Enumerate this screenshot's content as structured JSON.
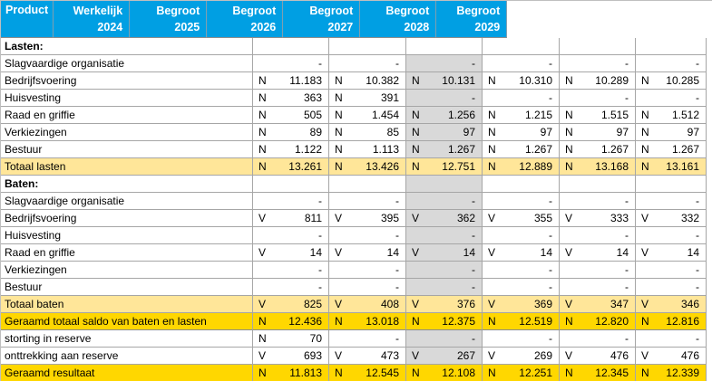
{
  "table": {
    "product_header": "Product",
    "columns": [
      {
        "type_label": "Werkelijk",
        "year": "2024",
        "shaded": false
      },
      {
        "type_label": "Begroot",
        "year": "2025",
        "shaded": false
      },
      {
        "type_label": "Begroot",
        "year": "2026",
        "shaded": true
      },
      {
        "type_label": "Begroot",
        "year": "2027",
        "shaded": false
      },
      {
        "type_label": "Begroot",
        "year": "2028",
        "shaded": false
      },
      {
        "type_label": "Begroot",
        "year": "2029",
        "shaded": false
      }
    ],
    "rows": [
      {
        "label": "Lasten:",
        "style": "section",
        "cells": [
          [
            "",
            ""
          ],
          [
            "",
            ""
          ],
          [
            "",
            ""
          ],
          [
            "",
            ""
          ],
          [
            "",
            ""
          ],
          [
            "",
            ""
          ]
        ]
      },
      {
        "label": "Slagvaardige organisatie",
        "style": "normal",
        "cells": [
          [
            "",
            "-"
          ],
          [
            "",
            "-"
          ],
          [
            "",
            "-"
          ],
          [
            "",
            "-"
          ],
          [
            "",
            "-"
          ],
          [
            "",
            "-"
          ]
        ]
      },
      {
        "label": "Bedrijfsvoering",
        "style": "normal",
        "cells": [
          [
            "N",
            "11.183"
          ],
          [
            "N",
            "10.382"
          ],
          [
            "N",
            "10.131"
          ],
          [
            "N",
            "10.310"
          ],
          [
            "N",
            "10.289"
          ],
          [
            "N",
            "10.285"
          ]
        ]
      },
      {
        "label": "Huisvesting",
        "style": "normal",
        "cells": [
          [
            "N",
            "363"
          ],
          [
            "N",
            "391"
          ],
          [
            "",
            "-"
          ],
          [
            "",
            "-"
          ],
          [
            "",
            "-"
          ],
          [
            "",
            "-"
          ]
        ]
      },
      {
        "label": "Raad en griffie",
        "style": "normal",
        "cells": [
          [
            "N",
            "505"
          ],
          [
            "N",
            "1.454"
          ],
          [
            "N",
            "1.256"
          ],
          [
            "N",
            "1.215"
          ],
          [
            "N",
            "1.515"
          ],
          [
            "N",
            "1.512"
          ]
        ]
      },
      {
        "label": "Verkiezingen",
        "style": "normal",
        "cells": [
          [
            "N",
            "89"
          ],
          [
            "N",
            "85"
          ],
          [
            "N",
            "97"
          ],
          [
            "N",
            "97"
          ],
          [
            "N",
            "97"
          ],
          [
            "N",
            "97"
          ]
        ]
      },
      {
        "label": "Bestuur",
        "style": "normal",
        "cells": [
          [
            "N",
            "1.122"
          ],
          [
            "N",
            "1.113"
          ],
          [
            "N",
            "1.267"
          ],
          [
            "N",
            "1.267"
          ],
          [
            "N",
            "1.267"
          ],
          [
            "N",
            "1.267"
          ]
        ]
      },
      {
        "label": "Totaal lasten",
        "style": "subtotal",
        "cells": [
          [
            "N",
            "13.261"
          ],
          [
            "N",
            "13.426"
          ],
          [
            "N",
            "12.751"
          ],
          [
            "N",
            "12.889"
          ],
          [
            "N",
            "13.168"
          ],
          [
            "N",
            "13.161"
          ]
        ]
      },
      {
        "label": "Baten:",
        "style": "section",
        "cells": [
          [
            "",
            ""
          ],
          [
            "",
            ""
          ],
          [
            "",
            ""
          ],
          [
            "",
            ""
          ],
          [
            "",
            ""
          ],
          [
            "",
            ""
          ]
        ]
      },
      {
        "label": "Slagvaardige organisatie",
        "style": "normal",
        "cells": [
          [
            "",
            "-"
          ],
          [
            "",
            "-"
          ],
          [
            "",
            "-"
          ],
          [
            "",
            "-"
          ],
          [
            "",
            "-"
          ],
          [
            "",
            "-"
          ]
        ]
      },
      {
        "label": "Bedrijfsvoering",
        "style": "normal",
        "cells": [
          [
            "V",
            "811"
          ],
          [
            "V",
            "395"
          ],
          [
            "V",
            "362"
          ],
          [
            "V",
            "355"
          ],
          [
            "V",
            "333"
          ],
          [
            "V",
            "332"
          ]
        ]
      },
      {
        "label": "Huisvesting",
        "style": "normal",
        "cells": [
          [
            "",
            "-"
          ],
          [
            "",
            "-"
          ],
          [
            "",
            "-"
          ],
          [
            "",
            "-"
          ],
          [
            "",
            "-"
          ],
          [
            "",
            "-"
          ]
        ]
      },
      {
        "label": "Raad en griffie",
        "style": "normal",
        "cells": [
          [
            "V",
            "14"
          ],
          [
            "V",
            "14"
          ],
          [
            "V",
            "14"
          ],
          [
            "V",
            "14"
          ],
          [
            "V",
            "14"
          ],
          [
            "V",
            "14"
          ]
        ]
      },
      {
        "label": "Verkiezingen",
        "style": "normal",
        "cells": [
          [
            "",
            "-"
          ],
          [
            "",
            "-"
          ],
          [
            "",
            "-"
          ],
          [
            "",
            "-"
          ],
          [
            "",
            "-"
          ],
          [
            "",
            "-"
          ]
        ]
      },
      {
        "label": "Bestuur",
        "style": "normal",
        "cells": [
          [
            "",
            "-"
          ],
          [
            "",
            "-"
          ],
          [
            "",
            "-"
          ],
          [
            "",
            "-"
          ],
          [
            "",
            "-"
          ],
          [
            "",
            "-"
          ]
        ]
      },
      {
        "label": "Totaal baten",
        "style": "subtotal",
        "cells": [
          [
            "V",
            "825"
          ],
          [
            "V",
            "408"
          ],
          [
            "V",
            "376"
          ],
          [
            "V",
            "369"
          ],
          [
            "V",
            "347"
          ],
          [
            "V",
            "346"
          ]
        ]
      },
      {
        "label": "Geraamd totaal saldo van baten en lasten",
        "style": "total",
        "cells": [
          [
            "N",
            "12.436"
          ],
          [
            "N",
            "13.018"
          ],
          [
            "N",
            "12.375"
          ],
          [
            "N",
            "12.519"
          ],
          [
            "N",
            "12.820"
          ],
          [
            "N",
            "12.816"
          ]
        ]
      },
      {
        "label": "storting in reserve",
        "style": "normal",
        "cells": [
          [
            "N",
            "70"
          ],
          [
            "",
            "-"
          ],
          [
            "",
            "-"
          ],
          [
            "",
            "-"
          ],
          [
            "",
            "-"
          ],
          [
            "",
            "-"
          ]
        ]
      },
      {
        "label": "onttrekking aan reserve",
        "style": "normal",
        "cells": [
          [
            "V",
            "693"
          ],
          [
            "V",
            "473"
          ],
          [
            "V",
            "267"
          ],
          [
            "V",
            "269"
          ],
          [
            "V",
            "476"
          ],
          [
            "V",
            "476"
          ]
        ]
      },
      {
        "label": "Geraamd resultaat",
        "style": "total",
        "cells": [
          [
            "N",
            "11.813"
          ],
          [
            "N",
            "12.545"
          ],
          [
            "N",
            "12.108"
          ],
          [
            "N",
            "12.251"
          ],
          [
            "N",
            "12.345"
          ],
          [
            "N",
            "12.339"
          ]
        ]
      }
    ]
  },
  "colors": {
    "header_blue": "#009FE3",
    "shaded_column_gray": "#D9D9D9",
    "subtotal_yellow": "#FFE699",
    "total_yellow": "#FFD700",
    "gridline": "#A6A6A6"
  }
}
